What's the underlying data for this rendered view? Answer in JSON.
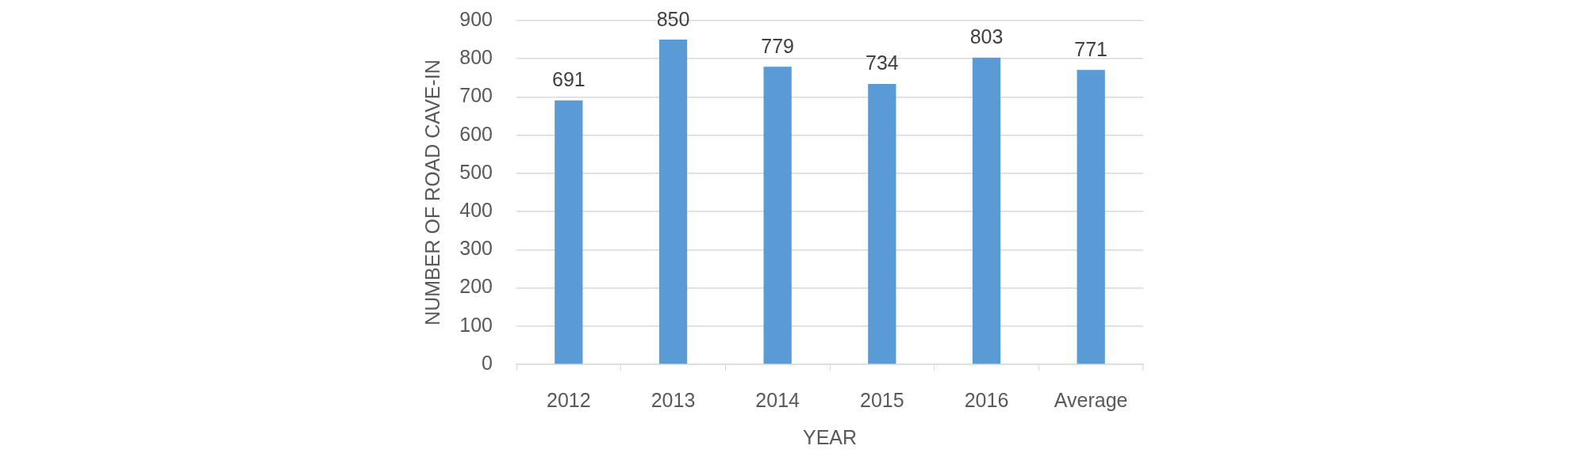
{
  "chart_data": {
    "type": "bar",
    "categories": [
      "2012",
      "2013",
      "2014",
      "2015",
      "2016",
      "Average"
    ],
    "values": [
      691,
      850,
      779,
      734,
      803,
      771
    ],
    "color": "#5b9bd5",
    "xlabel": "YEAR",
    "ylabel": "NUMBER OF ROAD CAVE-IN",
    "ylim": [
      0,
      900
    ],
    "yticks": [
      0,
      100,
      200,
      300,
      400,
      500,
      600,
      700,
      800,
      900
    ],
    "grid": "y",
    "data_labels": true
  }
}
